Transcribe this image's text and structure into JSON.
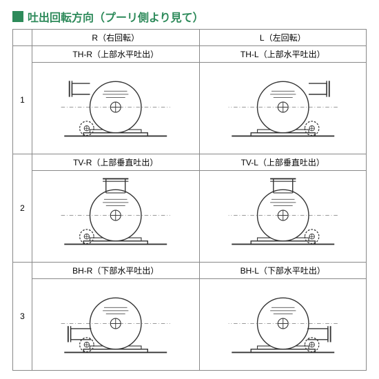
{
  "colors": {
    "accent_green": "#2d8a5a",
    "title_green": "#2d8a5a",
    "border": "#888888",
    "bg": "#ffffff",
    "stroke": "#333333",
    "hatch": "#666666"
  },
  "title": {
    "square_color": "#2d8a5a",
    "text": "吐出回転方向（プーリ側より見て）",
    "text_color": "#2d8a5a",
    "fontsize": 16
  },
  "table": {
    "type": "table",
    "header_cols": [
      {
        "key": "R",
        "label": "R（右回転）"
      },
      {
        "key": "L",
        "label": "L（左回転）"
      }
    ],
    "rows": [
      {
        "num": "1",
        "cells": [
          {
            "code": "TH-R",
            "desc": "（上部水平吐出）",
            "variant": "th",
            "mirror": false
          },
          {
            "code": "TH-L",
            "desc": "（上部水平吐出）",
            "variant": "th",
            "mirror": true
          }
        ]
      },
      {
        "num": "2",
        "cells": [
          {
            "code": "TV-R",
            "desc": "（上部垂直吐出）",
            "variant": "tv",
            "mirror": false
          },
          {
            "code": "TV-L",
            "desc": "（上部垂直吐出）",
            "variant": "tv",
            "mirror": true
          }
        ]
      },
      {
        "num": "3",
        "cells": [
          {
            "code": "BH-R",
            "desc": "（下部水平吐出）",
            "variant": "bh",
            "mirror": false
          },
          {
            "code": "BH-L",
            "desc": "（下部水平吐出）",
            "variant": "bh",
            "mirror": true
          }
        ]
      }
    ],
    "col_widths": {
      "rownum": 28,
      "data": 240
    },
    "row_height_fig": 130,
    "font_size_header": 12,
    "font_size_sublabel": 11
  }
}
